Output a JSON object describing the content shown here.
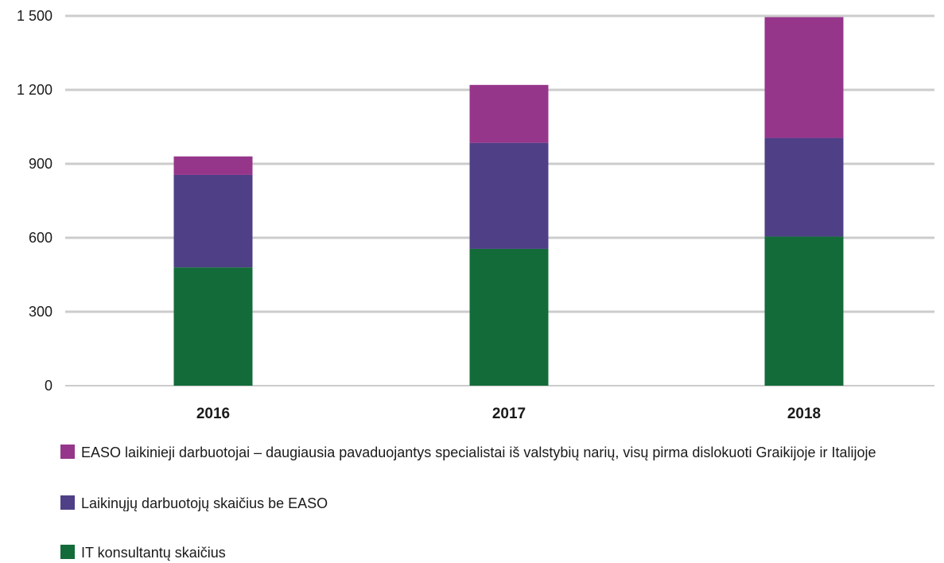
{
  "chart_data": {
    "type": "bar",
    "stacked": true,
    "categories": [
      "2016",
      "2017",
      "2018"
    ],
    "series": [
      {
        "name": "IT konsultantų skaičius",
        "color": "#136b3a",
        "values": [
          480,
          555,
          605
        ]
      },
      {
        "name": "Laikinųjų darbuotojų skaičius be EASO",
        "color": "#4f3f87",
        "values": [
          375,
          430,
          400
        ]
      },
      {
        "name": "EASO laikinieji darbuotojai – daugiausia pavaduojantys specialistai iš valstybių narių, visų pirma dislokuoti Graikijoje ir Italijoje",
        "color": "#96368b",
        "values": [
          75,
          235,
          490
        ]
      }
    ],
    "yticks": [
      "0",
      "300",
      "600",
      "900",
      "1 200",
      "1 500"
    ],
    "ytick_values": [
      0,
      300,
      600,
      900,
      1200,
      1500
    ],
    "ylim": [
      0,
      1500
    ],
    "grid": true,
    "legend_position": "bottom",
    "title": "",
    "xlabel": "",
    "ylabel": ""
  }
}
